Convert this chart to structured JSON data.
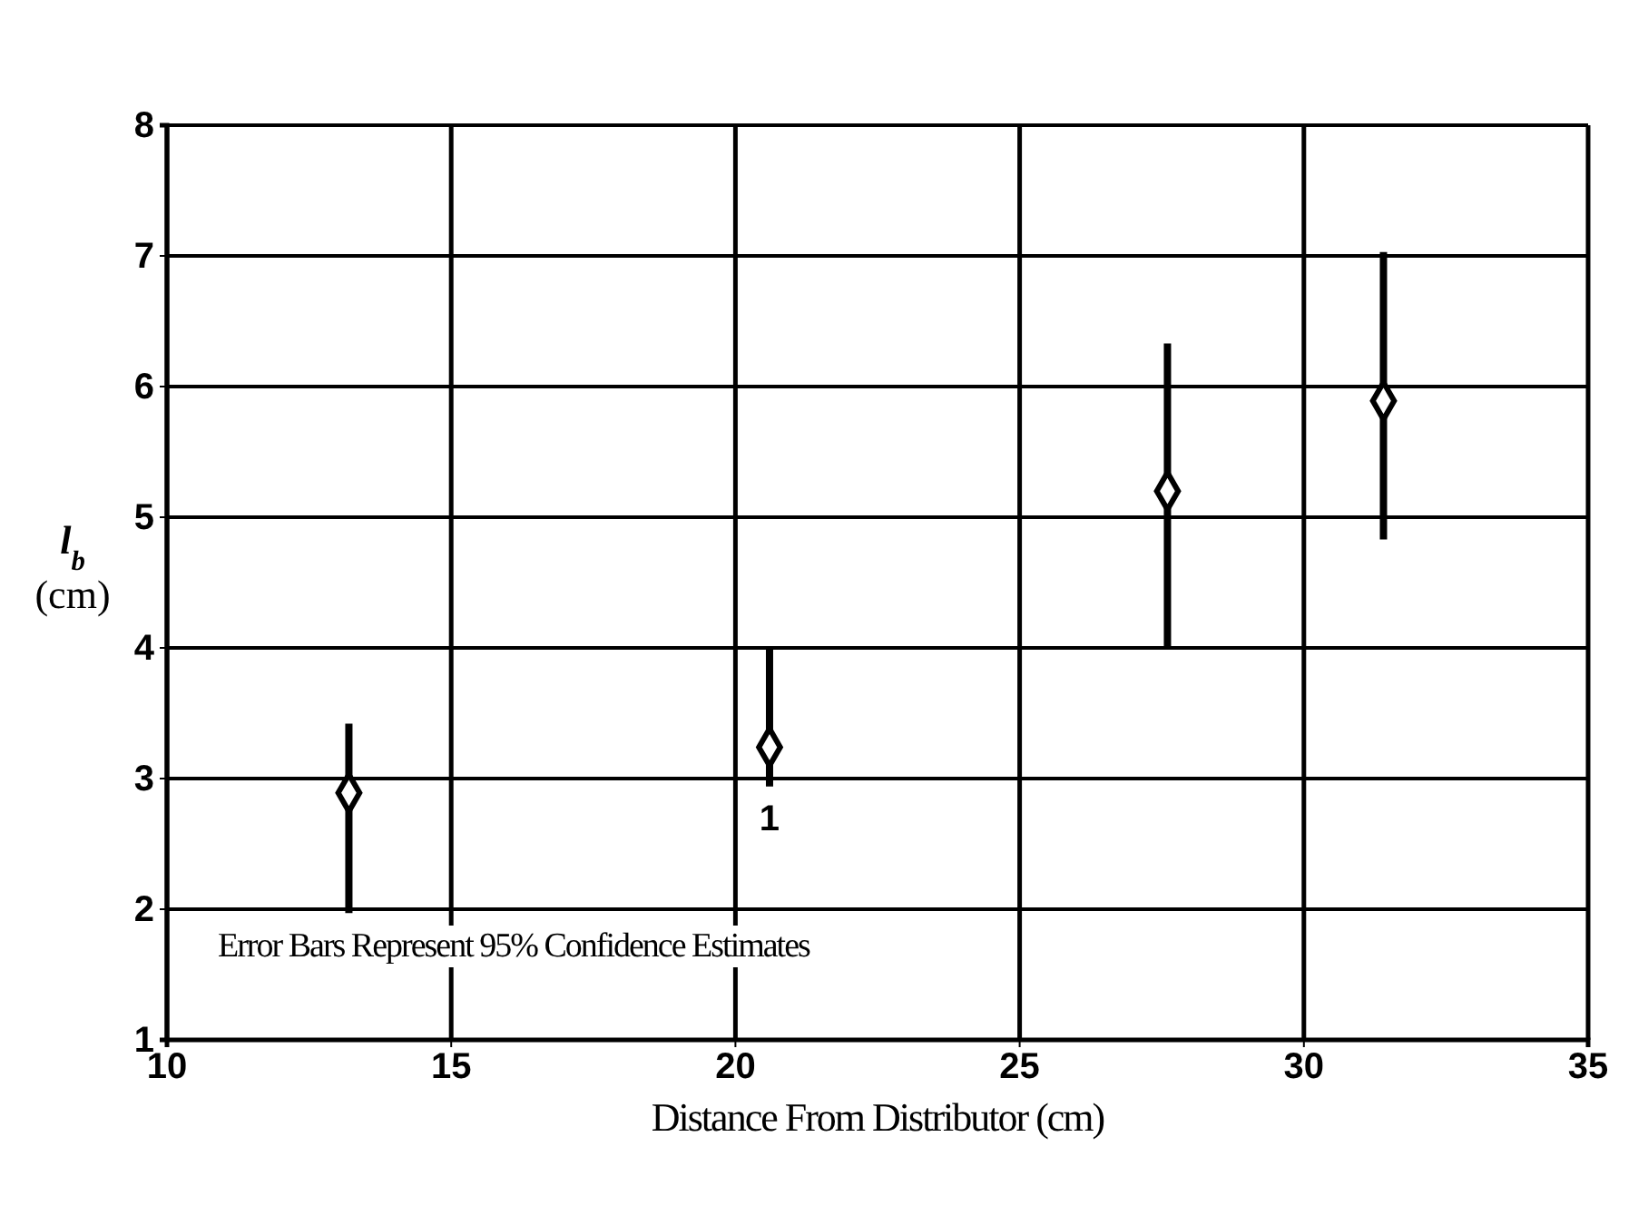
{
  "chart_data": {
    "type": "scatter",
    "xlabel": "Distance From Distributor (cm)",
    "ylabel": "l$_{b}$ (cm)",
    "x": [
      13.2,
      20.6,
      27.6,
      31.4
    ],
    "values": [
      2.89,
      3.24,
      5.2,
      5.89
    ],
    "errors": [
      [
        1.97,
        3.42
      ],
      [
        2.94,
        4.0
      ],
      [
        4.0,
        6.33
      ],
      [
        4.83,
        7.03
      ]
    ],
    "color": "#000000",
    "marker": "diamond",
    "xlim": [
      10,
      35
    ],
    "xticks": [
      10,
      15,
      20,
      25,
      30,
      35
    ],
    "ylim": [
      1,
      8
    ],
    "yticks": [
      1,
      2,
      3,
      4,
      5,
      6,
      7,
      8
    ],
    "grid": true,
    "annotations": [
      "Error Bars Represent 95% Confidence Estimates",
      "1"
    ]
  }
}
